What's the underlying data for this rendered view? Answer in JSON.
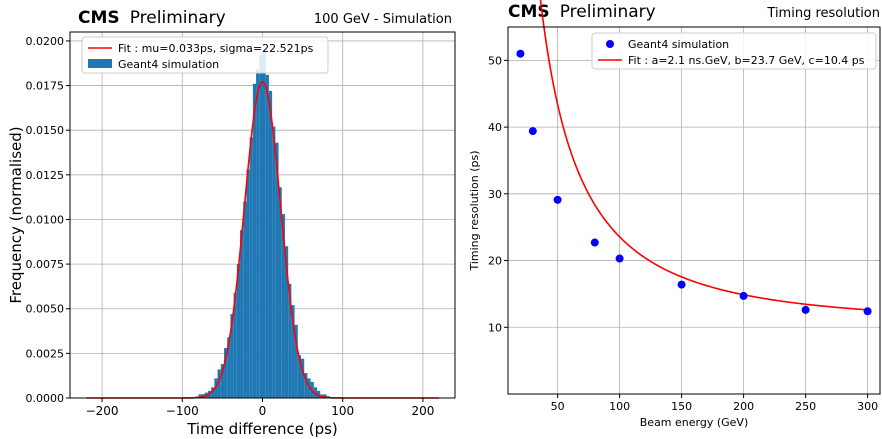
{
  "chart_data": [
    {
      "type": "bar",
      "panel": "left",
      "experiment": "CMS",
      "status": "Preliminary",
      "header_right": "100 GeV - Simulation",
      "xlabel": "Time difference (ps)",
      "ylabel": "Frequency (normalised)",
      "xlim": [
        -240,
        240
      ],
      "ylim": [
        0,
        0.0205
      ],
      "xticks": [
        -200,
        -100,
        0,
        100,
        200
      ],
      "xtick_labels": [
        "−200",
        "−100",
        "0",
        "100",
        "200"
      ],
      "yticks": [
        0.0,
        0.0025,
        0.005,
        0.0075,
        0.01,
        0.0125,
        0.015,
        0.0175,
        0.02
      ],
      "ytick_labels": [
        "0.0000",
        "0.0025",
        "0.0050",
        "0.0075",
        "0.0100",
        "0.0125",
        "0.0150",
        "0.0175",
        "0.0200"
      ],
      "grid": true,
      "legend_position": "top-left",
      "fit": {
        "label": "Fit : mu=0.033ps, sigma=22.521ps",
        "mu": 0.033,
        "sigma": 22.521,
        "x_range": [
          -220,
          220
        ],
        "color": "#ff0000"
      },
      "histogram": {
        "label": "Geant4 simulation",
        "color": "#1f77b4",
        "bin_width": 4,
        "x": [
          -90,
          -86,
          -82,
          -78,
          -74,
          -70,
          -66,
          -62,
          -58,
          -54,
          -50,
          -46,
          -42,
          -38,
          -34,
          -30,
          -26,
          -22,
          -18,
          -14,
          -10,
          -6,
          -2,
          2,
          6,
          10,
          14,
          18,
          22,
          26,
          30,
          34,
          38,
          42,
          46,
          50,
          54,
          58,
          62,
          66,
          70,
          74,
          78,
          82,
          86
        ],
        "values": [
          3e-05,
          5e-05,
          8e-05,
          0.0002,
          0.00022,
          0.0003,
          0.0004,
          0.0006,
          0.0011,
          0.0016,
          0.0019,
          0.0028,
          0.0034,
          0.0047,
          0.0059,
          0.0075,
          0.0094,
          0.011,
          0.0128,
          0.0146,
          0.0176,
          0.0184,
          0.0192,
          0.0194,
          0.0181,
          0.0172,
          0.0152,
          0.0143,
          0.0118,
          0.0103,
          0.0085,
          0.0064,
          0.0052,
          0.0041,
          0.0024,
          0.0022,
          0.0014,
          0.0011,
          0.0009,
          0.0006,
          0.0004,
          0.0002,
          0.0002,
          0.0001,
          5e-05
        ]
      }
    },
    {
      "type": "scatter",
      "panel": "right",
      "experiment": "CMS",
      "status": "Preliminary",
      "header_right": "Timing resolution",
      "xlabel": "Beam energy (GeV)",
      "ylabel": "Timing resolution (ps)",
      "xlim": [
        10,
        310
      ],
      "ylim": [
        0,
        55
      ],
      "xticks": [
        50,
        100,
        150,
        200,
        250,
        300
      ],
      "xtick_labels": [
        "50",
        "100",
        "150",
        "200",
        "250",
        "300"
      ],
      "yticks": [
        10,
        20,
        30,
        40,
        50
      ],
      "ytick_labels": [
        "10",
        "20",
        "30",
        "40",
        "50"
      ],
      "grid": true,
      "legend_position": "top-right",
      "series": [
        {
          "name": "Geant4 simulation",
          "color": "#0000ff",
          "x": [
            20,
            30,
            50,
            80,
            100,
            150,
            200,
            250,
            300
          ],
          "y": [
            51.0,
            39.4,
            29.1,
            22.7,
            20.3,
            16.4,
            14.7,
            12.6,
            12.4
          ]
        }
      ],
      "fit": {
        "label": "Fit : a=2.1 ns.GeV, b=23.7 GeV, c=10.4 ps",
        "a": 2100,
        "b": 23.7,
        "c": 10.4,
        "x_range": [
          20,
          300
        ],
        "color": "#ff0000"
      }
    }
  ]
}
